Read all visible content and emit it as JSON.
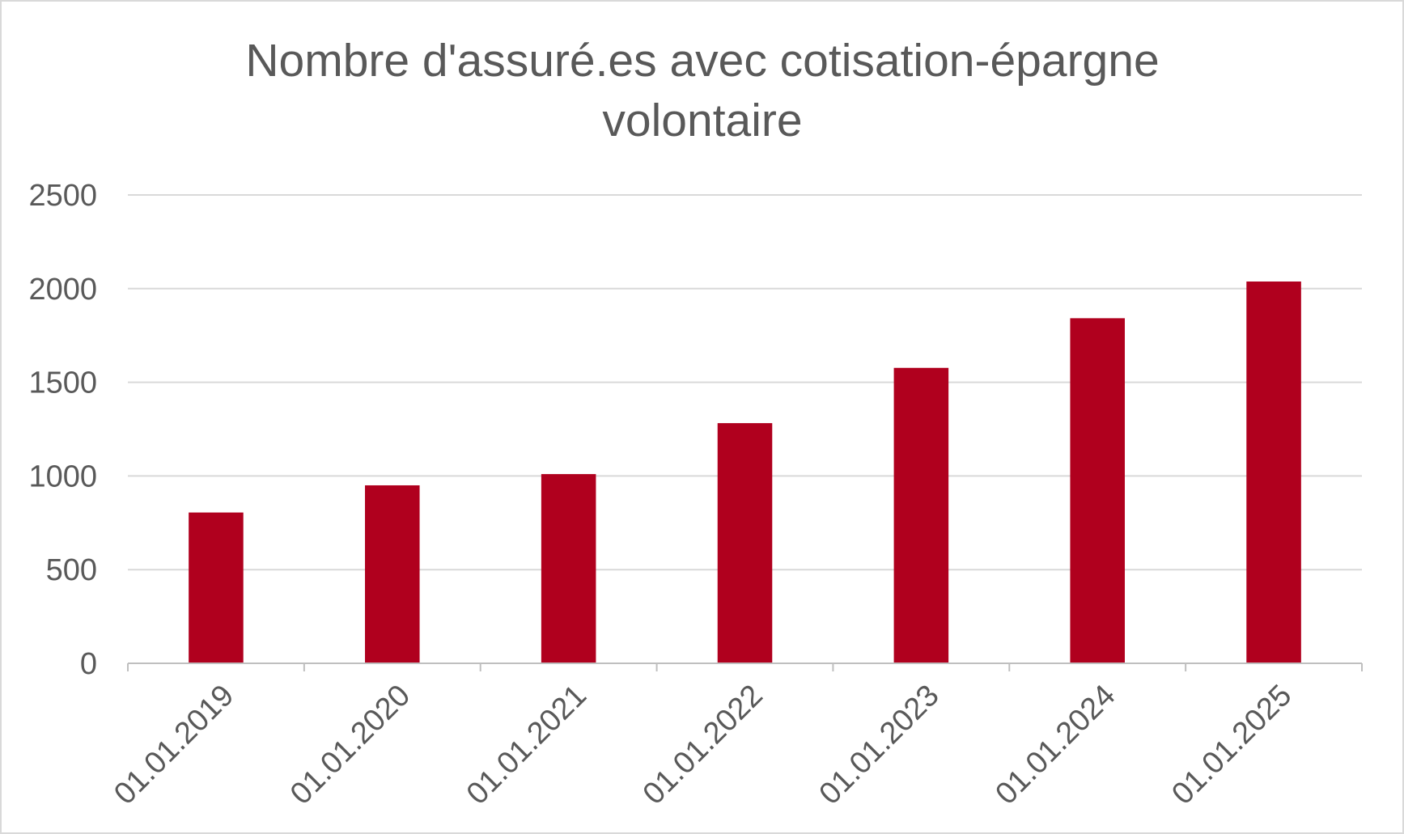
{
  "chart_data": {
    "type": "bar",
    "title_lines": [
      "Nombre d'assuré.es avec cotisation-épargne",
      "volontaire"
    ],
    "categories": [
      "01.01.2019",
      "01.01.2020",
      "01.01.2021",
      "01.01.2022",
      "01.01.2023",
      "01.01.2024",
      "01.01.2025"
    ],
    "values": [
      805,
      950,
      1010,
      1282,
      1577,
      1842,
      2038
    ],
    "ylim": [
      0,
      2500
    ],
    "yticks": [
      0,
      500,
      1000,
      1500,
      2000,
      2500
    ],
    "grid": true,
    "legend": "none",
    "colors": {
      "bar": "#b0001e",
      "gridline": "#d9d9d9",
      "axis": "#bfbfbf",
      "text": "#595959"
    }
  }
}
